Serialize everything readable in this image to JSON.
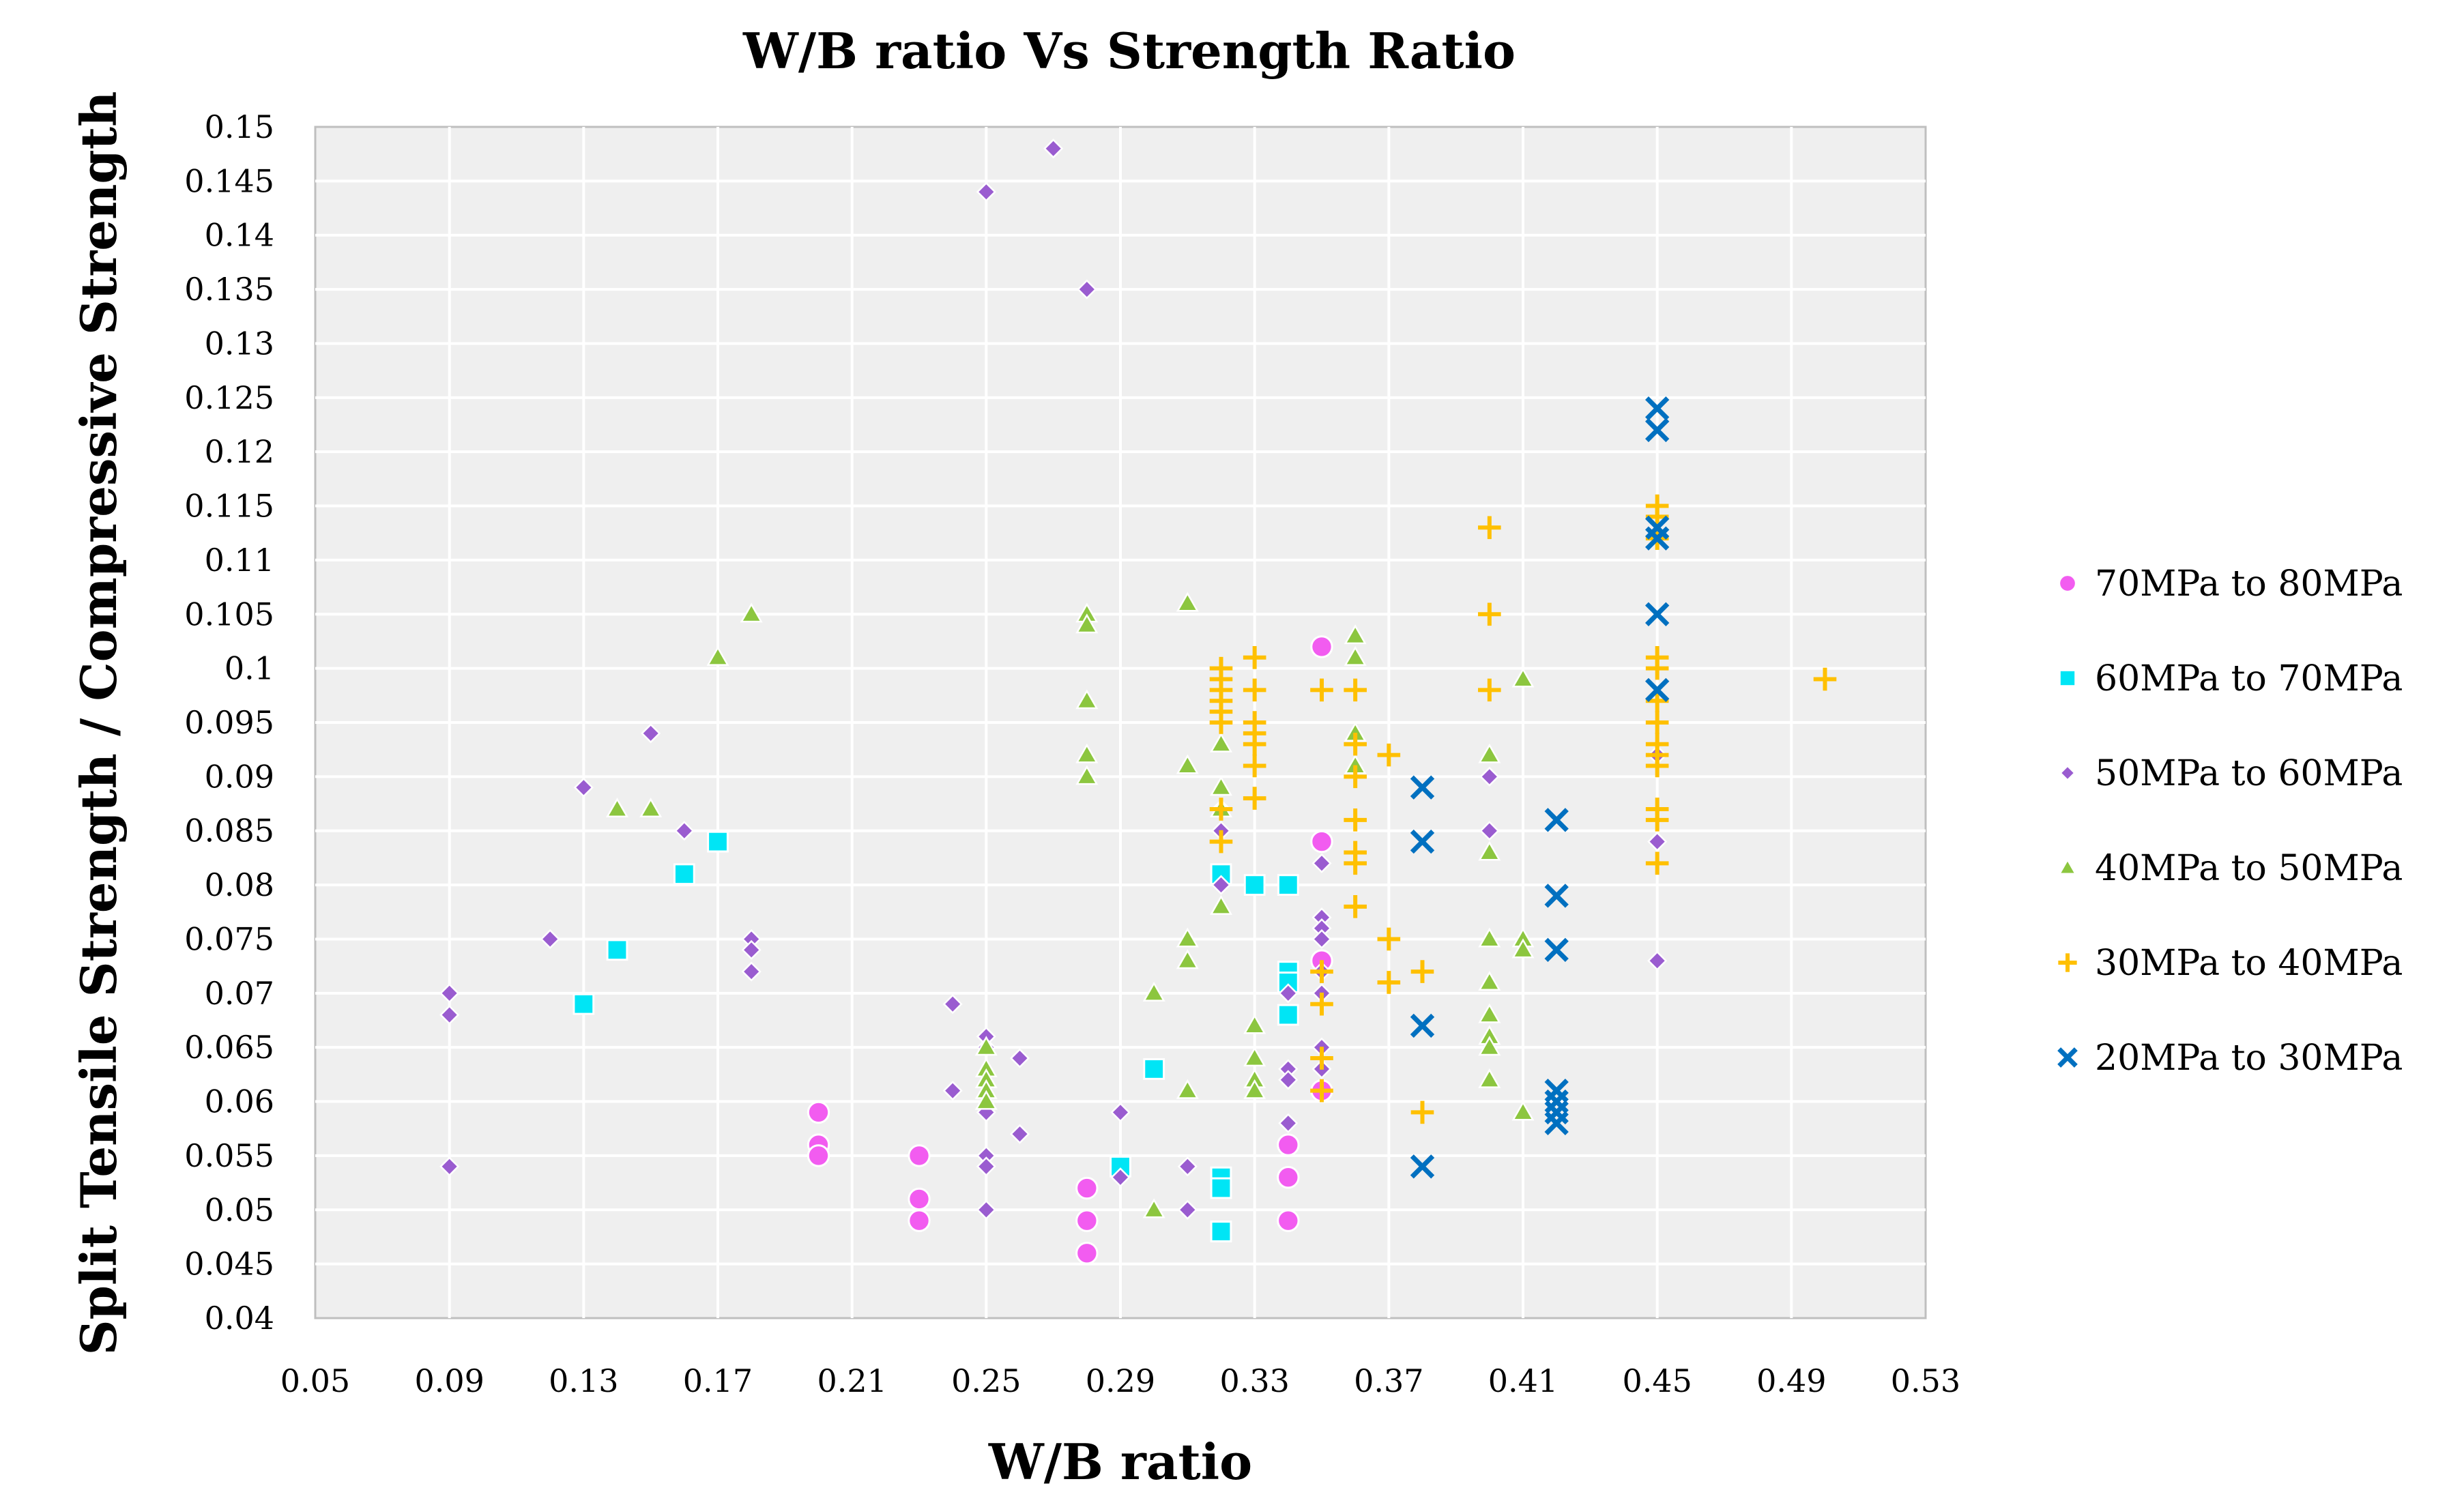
{
  "chart_data": {
    "type": "scatter",
    "title": "W/B ratio Vs Strength Ratio",
    "xlabel": "W/B ratio",
    "ylabel": "Split Tensile Strength / Compressive Strength",
    "xlim": [
      0.05,
      0.53
    ],
    "ylim": [
      0.04,
      0.15
    ],
    "grid": true,
    "legend_position": "right",
    "x_ticks": [
      "0.05",
      "0.09",
      "0.13",
      "0.17",
      "0.21",
      "0.25",
      "0.29",
      "0.33",
      "0.37",
      "0.41",
      "0.45",
      "0.49",
      "0.53"
    ],
    "y_ticks": [
      "0.04",
      "0.045",
      "0.05",
      "0.055",
      "0.06",
      "0.065",
      "0.07",
      "0.075",
      "0.08",
      "0.085",
      "0.09",
      "0.095",
      "0.1",
      "0.105",
      "0.11",
      "0.115",
      "0.12",
      "0.125",
      "0.13",
      "0.135",
      "0.14",
      "0.145",
      "0.15"
    ],
    "series": [
      {
        "name": "70MPa to 80MPa",
        "marker": "circle",
        "color": "#f25cf0",
        "points": [
          [
            0.2,
            0.059
          ],
          [
            0.2,
            0.056
          ],
          [
            0.2,
            0.055
          ],
          [
            0.23,
            0.055
          ],
          [
            0.23,
            0.051
          ],
          [
            0.23,
            0.049
          ],
          [
            0.28,
            0.052
          ],
          [
            0.28,
            0.049
          ],
          [
            0.28,
            0.046
          ],
          [
            0.34,
            0.056
          ],
          [
            0.34,
            0.053
          ],
          [
            0.34,
            0.049
          ],
          [
            0.35,
            0.102
          ],
          [
            0.35,
            0.084
          ],
          [
            0.35,
            0.073
          ],
          [
            0.35,
            0.061
          ]
        ]
      },
      {
        "name": "60MPa to 70MPa",
        "marker": "square",
        "color": "#00e5f5",
        "points": [
          [
            0.13,
            0.069
          ],
          [
            0.14,
            0.074
          ],
          [
            0.16,
            0.081
          ],
          [
            0.17,
            0.084
          ],
          [
            0.29,
            0.054
          ],
          [
            0.3,
            0.063
          ],
          [
            0.32,
            0.081
          ],
          [
            0.32,
            0.053
          ],
          [
            0.32,
            0.052
          ],
          [
            0.32,
            0.048
          ],
          [
            0.33,
            0.08
          ],
          [
            0.34,
            0.08
          ],
          [
            0.34,
            0.072
          ],
          [
            0.34,
            0.071
          ],
          [
            0.34,
            0.068
          ]
        ]
      },
      {
        "name": "50MPa to 60MPa",
        "marker": "diamond",
        "color": "#9a5cd0",
        "points": [
          [
            0.09,
            0.07
          ],
          [
            0.09,
            0.068
          ],
          [
            0.09,
            0.054
          ],
          [
            0.12,
            0.075
          ],
          [
            0.13,
            0.089
          ],
          [
            0.15,
            0.094
          ],
          [
            0.16,
            0.085
          ],
          [
            0.18,
            0.075
          ],
          [
            0.18,
            0.074
          ],
          [
            0.18,
            0.072
          ],
          [
            0.24,
            0.069
          ],
          [
            0.24,
            0.061
          ],
          [
            0.25,
            0.144
          ],
          [
            0.25,
            0.066
          ],
          [
            0.25,
            0.065
          ],
          [
            0.25,
            0.059
          ],
          [
            0.25,
            0.055
          ],
          [
            0.25,
            0.054
          ],
          [
            0.25,
            0.05
          ],
          [
            0.26,
            0.064
          ],
          [
            0.26,
            0.057
          ],
          [
            0.27,
            0.148
          ],
          [
            0.28,
            0.135
          ],
          [
            0.29,
            0.059
          ],
          [
            0.29,
            0.053
          ],
          [
            0.31,
            0.054
          ],
          [
            0.31,
            0.05
          ],
          [
            0.32,
            0.087
          ],
          [
            0.32,
            0.085
          ],
          [
            0.32,
            0.08
          ],
          [
            0.34,
            0.07
          ],
          [
            0.34,
            0.063
          ],
          [
            0.34,
            0.062
          ],
          [
            0.34,
            0.058
          ],
          [
            0.35,
            0.082
          ],
          [
            0.35,
            0.077
          ],
          [
            0.35,
            0.076
          ],
          [
            0.35,
            0.075
          ],
          [
            0.35,
            0.072
          ],
          [
            0.35,
            0.07
          ],
          [
            0.35,
            0.065
          ],
          [
            0.35,
            0.063
          ],
          [
            0.4,
            0.09
          ],
          [
            0.4,
            0.085
          ],
          [
            0.45,
            0.092
          ],
          [
            0.45,
            0.084
          ],
          [
            0.45,
            0.073
          ]
        ]
      },
      {
        "name": "40MPa to 50MPa",
        "marker": "triangle",
        "color": "#8cc63f",
        "points": [
          [
            0.14,
            0.087
          ],
          [
            0.15,
            0.087
          ],
          [
            0.17,
            0.101
          ],
          [
            0.18,
            0.105
          ],
          [
            0.25,
            0.065
          ],
          [
            0.25,
            0.063
          ],
          [
            0.25,
            0.062
          ],
          [
            0.25,
            0.061
          ],
          [
            0.25,
            0.06
          ],
          [
            0.28,
            0.105
          ],
          [
            0.28,
            0.104
          ],
          [
            0.28,
            0.097
          ],
          [
            0.28,
            0.092
          ],
          [
            0.28,
            0.09
          ],
          [
            0.3,
            0.07
          ],
          [
            0.3,
            0.05
          ],
          [
            0.31,
            0.106
          ],
          [
            0.31,
            0.091
          ],
          [
            0.31,
            0.075
          ],
          [
            0.31,
            0.073
          ],
          [
            0.31,
            0.061
          ],
          [
            0.32,
            0.093
          ],
          [
            0.32,
            0.089
          ],
          [
            0.32,
            0.087
          ],
          [
            0.32,
            0.078
          ],
          [
            0.33,
            0.067
          ],
          [
            0.33,
            0.064
          ],
          [
            0.33,
            0.062
          ],
          [
            0.33,
            0.061
          ],
          [
            0.36,
            0.103
          ],
          [
            0.36,
            0.101
          ],
          [
            0.36,
            0.094
          ],
          [
            0.36,
            0.091
          ],
          [
            0.4,
            0.092
          ],
          [
            0.4,
            0.083
          ],
          [
            0.4,
            0.075
          ],
          [
            0.4,
            0.071
          ],
          [
            0.4,
            0.068
          ],
          [
            0.4,
            0.066
          ],
          [
            0.4,
            0.065
          ],
          [
            0.4,
            0.062
          ],
          [
            0.41,
            0.099
          ],
          [
            0.41,
            0.075
          ],
          [
            0.41,
            0.074
          ],
          [
            0.41,
            0.059
          ]
        ]
      },
      {
        "name": "30MPa to 40MPa",
        "marker": "plus",
        "color": "#ffc000",
        "points": [
          [
            0.32,
            0.1
          ],
          [
            0.32,
            0.099
          ],
          [
            0.32,
            0.098
          ],
          [
            0.32,
            0.097
          ],
          [
            0.32,
            0.096
          ],
          [
            0.32,
            0.095
          ],
          [
            0.32,
            0.087
          ],
          [
            0.32,
            0.084
          ],
          [
            0.33,
            0.101
          ],
          [
            0.33,
            0.098
          ],
          [
            0.33,
            0.095
          ],
          [
            0.33,
            0.094
          ],
          [
            0.33,
            0.093
          ],
          [
            0.33,
            0.091
          ],
          [
            0.33,
            0.088
          ],
          [
            0.35,
            0.098
          ],
          [
            0.35,
            0.072
          ],
          [
            0.35,
            0.069
          ],
          [
            0.35,
            0.064
          ],
          [
            0.35,
            0.061
          ],
          [
            0.36,
            0.098
          ],
          [
            0.36,
            0.093
          ],
          [
            0.36,
            0.09
          ],
          [
            0.36,
            0.086
          ],
          [
            0.36,
            0.083
          ],
          [
            0.36,
            0.082
          ],
          [
            0.36,
            0.078
          ],
          [
            0.37,
            0.092
          ],
          [
            0.37,
            0.075
          ],
          [
            0.37,
            0.071
          ],
          [
            0.38,
            0.072
          ],
          [
            0.38,
            0.059
          ],
          [
            0.4,
            0.113
          ],
          [
            0.4,
            0.105
          ],
          [
            0.4,
            0.098
          ],
          [
            0.45,
            0.115
          ],
          [
            0.45,
            0.114
          ],
          [
            0.45,
            0.112
          ],
          [
            0.45,
            0.101
          ],
          [
            0.45,
            0.1
          ],
          [
            0.45,
            0.097
          ],
          [
            0.45,
            0.095
          ],
          [
            0.45,
            0.093
          ],
          [
            0.45,
            0.092
          ],
          [
            0.45,
            0.091
          ],
          [
            0.45,
            0.087
          ],
          [
            0.45,
            0.086
          ],
          [
            0.45,
            0.082
          ],
          [
            0.5,
            0.099
          ]
        ]
      },
      {
        "name": "20MPa to 30MPa",
        "marker": "x",
        "color": "#0070c0",
        "points": [
          [
            0.38,
            0.089
          ],
          [
            0.38,
            0.084
          ],
          [
            0.38,
            0.067
          ],
          [
            0.38,
            0.054
          ],
          [
            0.42,
            0.086
          ],
          [
            0.42,
            0.079
          ],
          [
            0.42,
            0.074
          ],
          [
            0.42,
            0.061
          ],
          [
            0.42,
            0.06
          ],
          [
            0.42,
            0.059
          ],
          [
            0.42,
            0.058
          ],
          [
            0.45,
            0.124
          ],
          [
            0.45,
            0.122
          ],
          [
            0.45,
            0.113
          ],
          [
            0.45,
            0.112
          ],
          [
            0.45,
            0.105
          ],
          [
            0.45,
            0.098
          ]
        ]
      }
    ]
  }
}
